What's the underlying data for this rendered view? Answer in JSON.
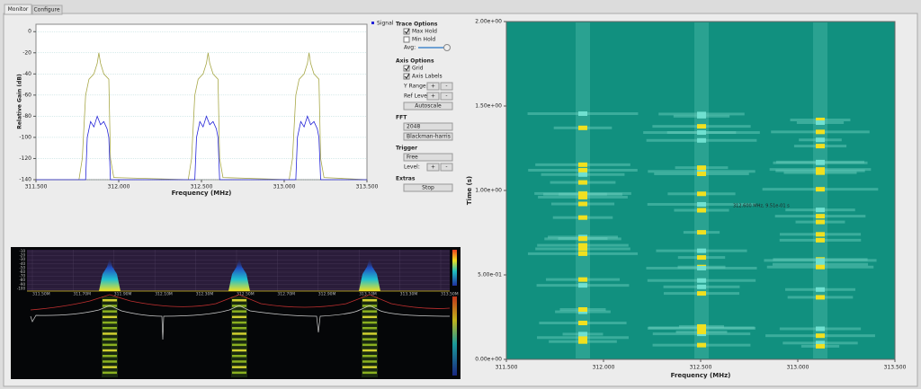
{
  "tabs": [
    "Monitor",
    "Configure"
  ],
  "spectrum": {
    "type": "line",
    "ylabel": "Relative Gain (dB)",
    "xlabel": "Frequency (MHz)",
    "xlim": [
      311.5,
      313.5
    ],
    "ylim": [
      -140,
      7
    ],
    "xticks": [
      {
        "value": 311.5,
        "label": "311.500"
      },
      {
        "value": 312,
        "label": "312.000"
      },
      {
        "value": 312.5,
        "label": "312.500"
      },
      {
        "value": 313,
        "label": "313.000"
      },
      {
        "value": 313.5,
        "label": "313.500"
      }
    ],
    "yticks": [
      0,
      -20,
      -40,
      -60,
      -80,
      -100,
      -120,
      -140
    ],
    "grid": true,
    "series": [
      {
        "name": "Signal",
        "color": "#2424d8",
        "x": [
          311.5,
          311.8,
          311.81,
          311.83,
          311.85,
          311.87,
          311.89,
          311.91,
          311.93,
          311.94,
          311.95,
          312.46,
          312.47,
          312.49,
          312.51,
          312.53,
          312.55,
          312.57,
          312.59,
          312.6,
          312.61,
          313.07,
          313.08,
          313.1,
          313.12,
          313.14,
          313.16,
          313.18,
          313.2,
          313.21,
          313.22,
          313.5
        ],
        "values": [
          -140,
          -140,
          -100,
          -85,
          -90,
          -80,
          -88,
          -85,
          -92,
          -100,
          -140,
          -140,
          -100,
          -85,
          -90,
          -80,
          -88,
          -85,
          -92,
          -100,
          -140,
          -140,
          -100,
          -85,
          -90,
          -80,
          -88,
          -85,
          -92,
          -100,
          -140,
          -140
        ]
      }
    ],
    "max_hold": {
      "color": "#a8a848",
      "x": [
        311.5,
        311.76,
        311.78,
        311.8,
        311.82,
        311.85,
        311.87,
        311.88,
        311.89,
        311.91,
        311.94,
        311.95,
        311.97,
        312.42,
        312.44,
        312.46,
        312.48,
        312.51,
        312.53,
        312.54,
        312.55,
        312.57,
        312.6,
        312.61,
        312.63,
        313.03,
        313.05,
        313.07,
        313.09,
        313.12,
        313.14,
        313.15,
        313.16,
        313.18,
        313.21,
        313.22,
        313.24,
        313.5
      ],
      "values": [
        -140,
        -140,
        -120,
        -60,
        -45,
        -40,
        -30,
        -20,
        -30,
        -40,
        -45,
        -120,
        -138,
        -140,
        -120,
        -60,
        -45,
        -40,
        -30,
        -20,
        -30,
        -40,
        -45,
        -120,
        -138,
        -140,
        -120,
        -60,
        -45,
        -40,
        -30,
        -20,
        -30,
        -40,
        -45,
        -120,
        -138,
        -140
      ]
    }
  },
  "controls": {
    "trace_heading": "Trace Options",
    "max_hold": {
      "label": "Max Hold",
      "checked": true
    },
    "min_hold": {
      "label": "Min Hold",
      "checked": false
    },
    "avg": "Avg:",
    "axis_heading": "Axis Options",
    "grid": {
      "label": "Grid",
      "checked": true
    },
    "axis_labels": {
      "label": "Axis Labels",
      "checked": true
    },
    "y_range": "Y Range:",
    "ref_level": "Ref Level:",
    "plus": "+",
    "minus": "-",
    "autoscale": "Autoscale",
    "fft_heading": "FFT",
    "fft_size": "2048",
    "window": "Blackman-harris",
    "trigger_heading": "Trigger",
    "trigger_mode": "Free",
    "level": "Level:",
    "extras_heading": "Extras",
    "stop": "Stop"
  },
  "waterfall": {
    "ylabel": "Time (s)",
    "xlabel": "Frequency (MHz)",
    "xlim": [
      311.5,
      313.5
    ],
    "ylim": [
      0,
      2
    ],
    "xticks": [
      {
        "value": 311.5,
        "label": "311.500"
      },
      {
        "value": 312,
        "label": "312.000"
      },
      {
        "value": 312.5,
        "label": "312.500"
      },
      {
        "value": 313,
        "label": "313.000"
      },
      {
        "value": 313.5,
        "label": "313.500"
      }
    ],
    "yticks": [
      {
        "value": 2,
        "label": "2.00e+00"
      },
      {
        "value": 1.5,
        "label": "1.50e+00"
      },
      {
        "value": 1,
        "label": "1.00e+00"
      },
      {
        "value": 0.5,
        "label": "5.00e-01"
      },
      {
        "value": 0,
        "label": "0.00e+00"
      }
    ],
    "annotation": "312.600 MHz, 9.51e-01 s"
  },
  "mini": {
    "yticks": [
      "-10",
      "-20",
      "-30",
      "-40",
      "-50",
      "-60",
      "-70",
      "-80",
      "-90",
      "-100"
    ],
    "xticks": [
      "311.50M",
      "311.70M",
      "311.90M",
      "312.10M",
      "312.30M",
      "312.50M",
      "312.70M",
      "312.90M",
      "313.10M",
      "313.30M",
      "313.50M"
    ]
  }
}
